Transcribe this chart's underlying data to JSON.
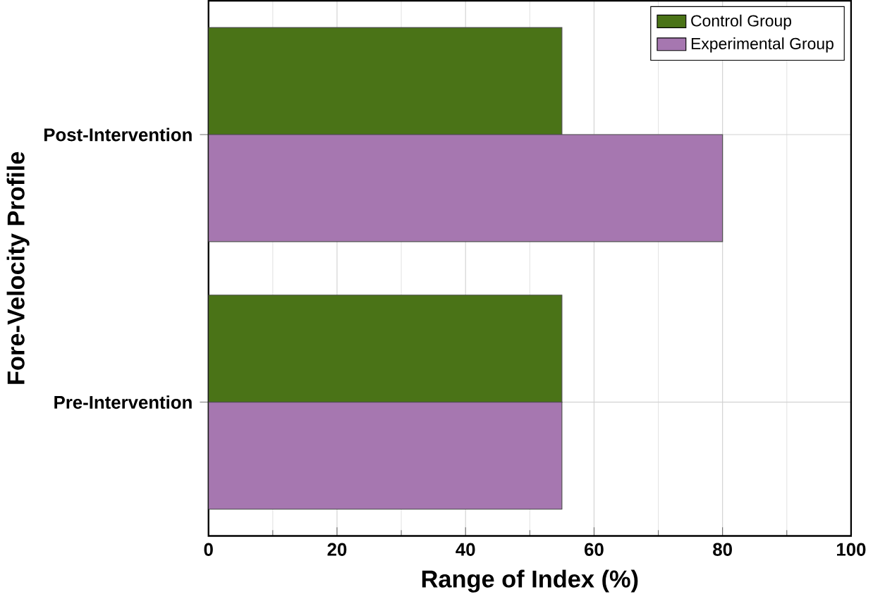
{
  "chart_data": {
    "type": "bar",
    "orientation": "horizontal",
    "xlabel": "Range of Index (%)",
    "ylabel": "Fore-Velocity Profile",
    "categories": [
      "Post-Intervention",
      "Pre-Intervention"
    ],
    "series": [
      {
        "name": "Control Group",
        "color": "#4a7317",
        "values": [
          55,
          55
        ]
      },
      {
        "name": "Experimental Group",
        "color": "#a677b0",
        "values": [
          80,
          55
        ]
      }
    ],
    "xlim": [
      0,
      100
    ],
    "xticks": [
      0,
      20,
      40,
      60,
      80,
      100
    ],
    "grid": true,
    "legend": "top right"
  }
}
